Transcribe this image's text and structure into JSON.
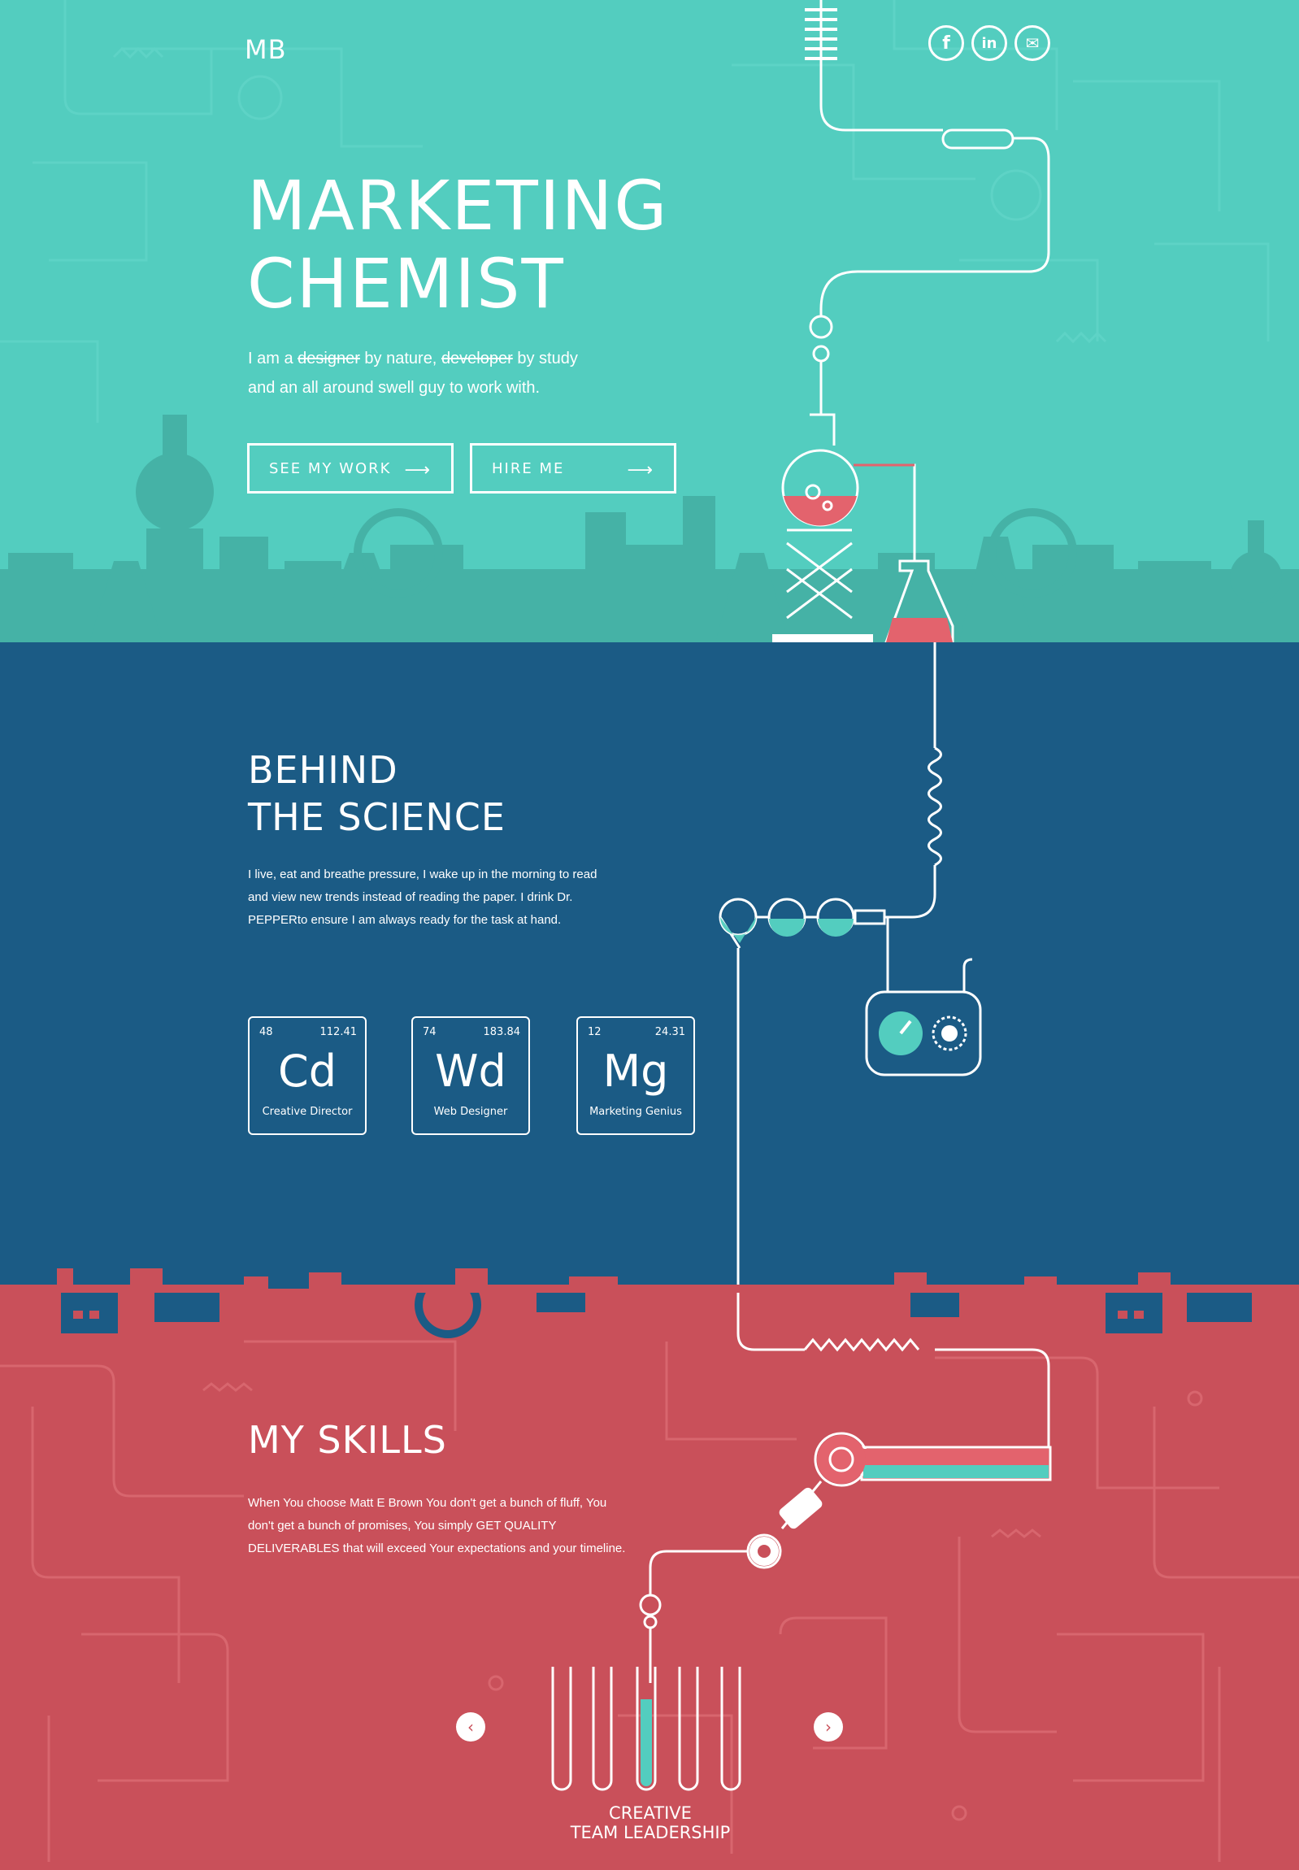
{
  "brand": {
    "logo": "MB"
  },
  "social": [
    {
      "name": "facebook",
      "glyph": "f"
    },
    {
      "name": "linkedin",
      "glyph": "in"
    },
    {
      "name": "email",
      "glyph": "✉"
    }
  ],
  "hero": {
    "title_line1": "MARKETING",
    "title_line2": "CHEMIST",
    "sub_prefix": "I am a",
    "sub_strike1": "designer",
    "sub_mid": "by nature,",
    "sub_strike2": "developer",
    "sub_suffix": "by study",
    "sub_line2": "and an all around swell guy to work with.",
    "btn_work": "SEE MY WORK",
    "btn_hire": "HIRE ME",
    "arrow": "⟶"
  },
  "science": {
    "title_line1": "BEHIND",
    "title_line2": "THE SCIENCE",
    "para_line1": "I live, eat and breathe pressure, I wake up in the morning to read",
    "para_line2": "and view new trends instead of reading the paper. I drink Dr.",
    "para_line3": "PEPPERto ensure I am  always ready for the task at hand.",
    "elements": [
      {
        "number": "48",
        "mass": "112.41",
        "symbol": "Cd",
        "role": "Creative Director"
      },
      {
        "number": "74",
        "mass": "183.84",
        "symbol": "Wd",
        "role": "Web Designer"
      },
      {
        "number": "12",
        "mass": "24.31",
        "symbol": "Mg",
        "role": "Marketing Genius"
      }
    ]
  },
  "skills": {
    "title": "MY SKILLS",
    "para_line1": "When You choose Matt E Brown You don't get a bunch of fluff, You",
    "para_line2": "don't get a bunch of promises, You simply GET QUALITY",
    "para_line3": "DELIVERABLES that will exceed Your expectations and your timeline.",
    "prev": "‹",
    "next": "›",
    "label_line1": "CREATIVE",
    "label_line2": "TEAM LEADERSHIP"
  },
  "colors": {
    "teal": "#53cdbf",
    "teal_dark": "#3fa99d",
    "navy": "#1b5b85",
    "red": "#c9505a",
    "liquid_red": "#e3636d",
    "liquid_teal": "#53cdbf"
  }
}
